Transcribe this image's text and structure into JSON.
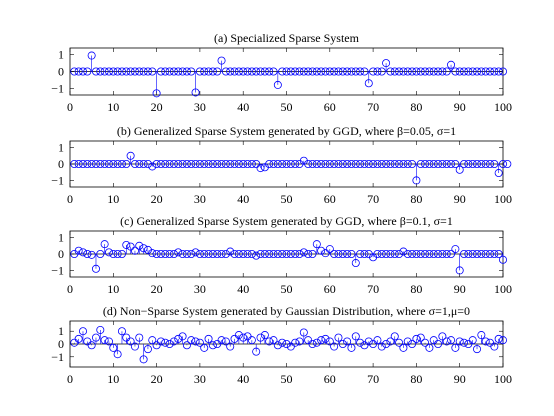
{
  "chart_data": [
    {
      "type": "stem",
      "title": "(a) Specialized Sparse System",
      "xlim": [
        0,
        100
      ],
      "ylim": [
        -1.4,
        1.4
      ],
      "xticks": [
        0,
        10,
        20,
        30,
        40,
        50,
        60,
        70,
        80,
        90,
        100
      ],
      "yticks": [
        1,
        0,
        -1
      ],
      "x_start": 1,
      "values": [
        0,
        0,
        0,
        0,
        0.95,
        0,
        0,
        0,
        0,
        0,
        0,
        0,
        0,
        0,
        0,
        0,
        0,
        0,
        0,
        -1.3,
        0,
        0,
        0,
        0,
        0,
        0,
        0,
        0,
        -1.25,
        0,
        0,
        0,
        0,
        0,
        0.65,
        0,
        0,
        0,
        0,
        0,
        0,
        0,
        0,
        0,
        0,
        0,
        0,
        -0.8,
        0,
        0,
        0,
        0,
        0,
        0,
        0,
        0,
        0,
        0,
        0,
        0,
        0,
        0,
        0,
        0,
        0,
        0,
        0,
        0,
        -0.7,
        0,
        0,
        0,
        0.5,
        0,
        0,
        0,
        0,
        0,
        0,
        0,
        0,
        0,
        0,
        0,
        0,
        0,
        0,
        0.4,
        0,
        0,
        0,
        0,
        0,
        0,
        0,
        0,
        0,
        0,
        0,
        0
      ]
    },
    {
      "type": "stem",
      "title": "(b) Generalized Sparse System generated by GGD, where β=0.05, σ=1",
      "xlim": [
        0,
        100
      ],
      "ylim": [
        -1.4,
        1.4
      ],
      "xticks": [
        0,
        10,
        20,
        30,
        40,
        50,
        60,
        70,
        80,
        90,
        100
      ],
      "yticks": [
        1,
        0,
        -1
      ],
      "x_start": 1,
      "values": [
        0,
        0,
        0,
        0,
        0,
        0,
        0,
        0,
        0,
        0,
        0,
        0,
        0,
        0.5,
        0,
        0,
        0,
        0,
        -0.15,
        0,
        0,
        0,
        0,
        0,
        0,
        0,
        0,
        0,
        0,
        0,
        0,
        0,
        0,
        0,
        0,
        0,
        0,
        0,
        0,
        0,
        0,
        0,
        0,
        -0.25,
        -0.2,
        0,
        0,
        0,
        0,
        0,
        0,
        0,
        0,
        0.2,
        0,
        0,
        0,
        0,
        0,
        0,
        0,
        0,
        0,
        0,
        0,
        0,
        0,
        0,
        0,
        0,
        0,
        0,
        0,
        0,
        0,
        0,
        0,
        0,
        0,
        -1.0,
        0,
        0,
        0,
        0,
        0,
        0,
        0,
        0,
        0,
        -0.35,
        0,
        0,
        0,
        0,
        0,
        0,
        0,
        0,
        -0.55,
        0,
        0
      ]
    },
    {
      "type": "stem",
      "title": "(c) Generalized Sparse System generated by GGD, where β=0.1, σ=1",
      "xlim": [
        0,
        100
      ],
      "ylim": [
        -1.4,
        1.4
      ],
      "xticks": [
        0,
        10,
        20,
        30,
        40,
        50,
        60,
        70,
        80,
        90,
        100
      ],
      "yticks": [
        1,
        0,
        -1
      ],
      "x_start": 1,
      "values": [
        0,
        0.2,
        0.1,
        0,
        -0.05,
        -0.9,
        0,
        0.6,
        0.1,
        0,
        0,
        0,
        0.55,
        0.45,
        0.2,
        0.5,
        0.35,
        0.25,
        0.05,
        0,
        0,
        0,
        0,
        0,
        0.1,
        0,
        0,
        0,
        0.1,
        0,
        0,
        0,
        0,
        0,
        0,
        0,
        0.15,
        0,
        0,
        0,
        0,
        0,
        -0.1,
        0,
        0,
        0,
        0,
        0,
        0,
        0,
        0,
        0,
        0,
        0.1,
        0,
        0,
        0.6,
        0.2,
        0.05,
        0.3,
        0,
        0,
        0,
        0,
        0,
        -0.55,
        0,
        0,
        0,
        -0.2,
        0,
        0,
        0,
        0,
        0,
        0,
        0.15,
        0,
        0,
        0,
        0,
        0,
        0,
        0,
        0,
        0,
        0,
        0,
        0.3,
        -1.0,
        0,
        0,
        0,
        0,
        0,
        0,
        0,
        0,
        0,
        -0.35
      ]
    },
    {
      "type": "stem",
      "title": "(d) Non−Sparse System generated by Gaussian Distribution, where σ=1,μ=0",
      "xlim": [
        0,
        100
      ],
      "ylim": [
        -1.8,
        1.8
      ],
      "xticks": [
        0,
        10,
        20,
        30,
        40,
        50,
        60,
        70,
        80,
        90,
        100
      ],
      "yticks": [
        1,
        0,
        -1
      ],
      "x_start": 1,
      "values": [
        0.1,
        0.4,
        1.0,
        0.2,
        -0.1,
        0.5,
        1.1,
        0.3,
        0.2,
        -0.3,
        -0.8,
        1.0,
        0.5,
        0.2,
        -0.2,
        0.5,
        -1.2,
        -0.4,
        0.3,
        -0.1,
        0.2,
        0.1,
        0.0,
        0.2,
        0.4,
        0.6,
        -0.1,
        0.3,
        0.2,
        0.1,
        -0.3,
        0.4,
        -0.1,
        0.0,
        0.3,
        0.2,
        -0.2,
        0.4,
        0.7,
        0.5,
        0.6,
        0.3,
        -0.6,
        0.5,
        0.7,
        0.2,
        0.3,
        -0.1,
        0.1,
        0.0,
        -0.2,
        0.1,
        0.2,
        0.9,
        0.3,
        0.0,
        0.1,
        0.3,
        0.4,
        0.2,
        -0.2,
        0.5,
        0.0,
        0.2,
        -0.3,
        0.6,
        0.1,
        -0.1,
        0.2,
        0.0,
        0.3,
        -0.2,
        0.0,
        0.2,
        0.6,
        0.1,
        -0.3,
        0.2,
        0.0,
        0.4,
        0.5,
        0.1,
        -0.3,
        0.3,
        0.0,
        0.6,
        0.2,
        0.3,
        -0.3,
        0.2,
        0.1,
        0.0,
        0.3,
        -0.4,
        0.7,
        0.2,
        0.1,
        -0.2,
        0.4,
        0.3
      ]
    }
  ]
}
